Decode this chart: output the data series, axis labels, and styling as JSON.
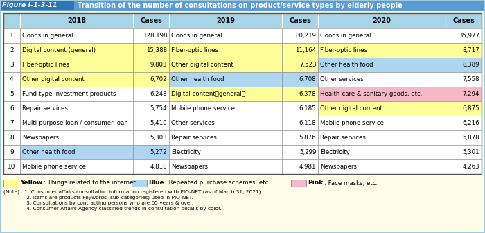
{
  "title_box": "Figure I-1-3-11",
  "title_text": "Transition of the number of consultations on product/service types by elderly people",
  "header_labels": [
    "",
    "2018",
    "Cases",
    "2019",
    "Cases",
    "2020",
    "Cases"
  ],
  "rows": [
    {
      "rank": "1",
      "y18": "Goods in general",
      "c18": "128,198",
      "y19": "Goods in general",
      "c19": "80,219",
      "y20": "Goods in general",
      "c20": "35,977",
      "bg18": null,
      "bg19": null,
      "bg20": null
    },
    {
      "rank": "2",
      "y18": "Digital content (general)",
      "c18": "15,388",
      "y19": "Fiber-optic lines",
      "c19": "11,164",
      "y20": "Fiber-optic lines",
      "c20": "8,717",
      "bg18": "yellow",
      "bg19": "yellow",
      "bg20": "yellow"
    },
    {
      "rank": "3",
      "y18": "Fiber-optic lines",
      "c18": "9,803",
      "y19": "Other digital content",
      "c19": "7,523",
      "y20": "Other health food",
      "c20": "8,389",
      "bg18": "yellow",
      "bg19": "yellow",
      "bg20": "blue"
    },
    {
      "rank": "4",
      "y18": "Other digital content",
      "c18": "6,702",
      "y19": "Other health food",
      "c19": "6,708",
      "y20": "Other services",
      "c20": "7,558",
      "bg18": "yellow",
      "bg19": "blue",
      "bg20": null
    },
    {
      "rank": "5",
      "y18": "Fund-type investment products",
      "c18": "6,248",
      "y19": "Digital content（general）",
      "c19": "6,378",
      "y20": "Health-care & sanitary goods, etc.",
      "c20": "7,294",
      "bg18": null,
      "bg19": "yellow",
      "bg20": "pink"
    },
    {
      "rank": "6",
      "y18": "Repair services",
      "c18": "5,754",
      "y19": "Mobile phone service",
      "c19": "6,185",
      "y20": "Other digital content",
      "c20": "6,875",
      "bg18": null,
      "bg19": null,
      "bg20": "yellow"
    },
    {
      "rank": "7",
      "y18": "Multi-purpose loan / consumer loan",
      "c18": "5,410",
      "y19": "Other services",
      "c19": "6,118",
      "y20": "Mobile phone service",
      "c20": "6,216",
      "bg18": null,
      "bg19": null,
      "bg20": null
    },
    {
      "rank": "8",
      "y18": "Newspapers",
      "c18": "5,303",
      "y19": "Repair services",
      "c19": "5,876",
      "y20": "Repair services",
      "c20": "5,878",
      "bg18": null,
      "bg19": null,
      "bg20": null
    },
    {
      "rank": "9",
      "y18": "Other health food",
      "c18": "5,272",
      "y19": "Electricity",
      "c19": "5,299",
      "y20": "Electricity",
      "c20": "5,301",
      "bg18": "blue",
      "bg19": null,
      "bg20": null
    },
    {
      "rank": "10",
      "y18": "Mobile phone service",
      "c18": "4,810",
      "y19": "Newspapers",
      "c19": "4,981",
      "y20": "Newspapers",
      "c20": "4,263",
      "bg18": null,
      "bg19": null,
      "bg20": null
    }
  ],
  "bg_page": "#FFFDE8",
  "header_bg": "#A8D4E8",
  "title_bar_bg": "#5B9BD5",
  "title_label_bg": "#2E75B6",
  "color_yellow": "#FFFF99",
  "color_blue": "#AED6F1",
  "color_pink": "#F4B8C8",
  "color_white": "#FFFFFF",
  "legend_yellow": "#FFFF99",
  "legend_blue": "#AED6F1",
  "legend_pink": "#F4B8C8",
  "border_color": "#888888",
  "notes": [
    "(Note)   1. Consumer affairs consultation information registered with PIO-NET (as of March 31, 2021)",
    "              2. Items are products keywords (sub-categories) used in PIO-NET.",
    "              3. Consultations by contracting persons who are 65 years & over.",
    "              4. Consumer Affairs Agency classified trends in consultation details by color."
  ]
}
